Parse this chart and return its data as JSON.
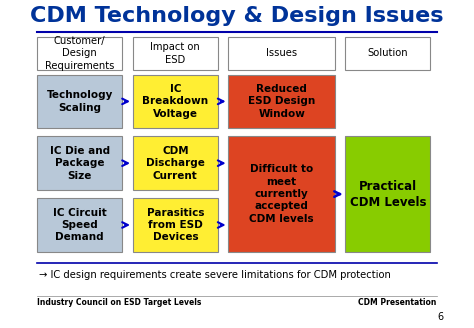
{
  "title": "CDM Technology & Design Issues",
  "title_color": "#003399",
  "title_fontsize": 16,
  "background_color": "#ffffff",
  "footer_left": "Industry Council on ESD Target Levels",
  "footer_right": "CDM Presentation",
  "footer_page": "6",
  "bottom_note": "→ IC design requirements create severe limitations for CDM protection",
  "col_headers": [
    "Customer/\nDesign\nRequirements",
    "Impact on\nESD",
    "Issues",
    "Solution"
  ],
  "col_header_bg": "#ffffff",
  "row1_left": "Technology\nScaling",
  "row1_mid": "IC\nBreakdown\nVoltage",
  "row2_left": "IC Die and\nPackage\nSize",
  "row2_mid": "CDM\nDischarge\nCurrent",
  "row3_left": "IC Circuit\nSpeed\nDemand",
  "row3_mid": "Parasitics\nfrom ESD\nDevices",
  "issue_top": "Reduced\nESD Design\nWindow",
  "issue_bottom": "Difficult to\nmeet\ncurrently\naccepted\nCDM levels",
  "solution": "Practical\nCDM Levels",
  "left_box_bg": "#b8c8d8",
  "mid_box_bg": "#ffee33",
  "issue_top_bg": "#dd4422",
  "issue_bottom_bg": "#dd4422",
  "solution_bg": "#88cc00",
  "arrow_color": "#0000cc",
  "text_dark": "#000000"
}
